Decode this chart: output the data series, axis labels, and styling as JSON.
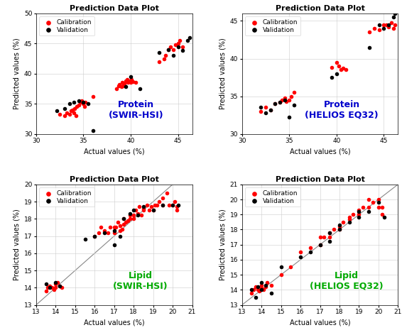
{
  "title": "Prediction Data Plot",
  "xlabel": "Actual values (%)",
  "ylabel": "Predicted values (%)",
  "protein_swir_cal_x": [
    32.5,
    33.0,
    33.2,
    33.5,
    33.7,
    33.8,
    34.0,
    34.1,
    34.2,
    34.3,
    34.5,
    34.7,
    34.8,
    35.0,
    35.1,
    35.2,
    36.0,
    38.5,
    38.7,
    38.8,
    39.0,
    39.1,
    39.2,
    39.3,
    39.5,
    39.6,
    39.7,
    39.8,
    40.0,
    40.1,
    40.2,
    40.5,
    43.0,
    43.5,
    43.7,
    44.0,
    44.2,
    44.5,
    44.7,
    45.0,
    45.2,
    45.5
  ],
  "protein_swir_cal_y": [
    33.2,
    33.0,
    33.5,
    33.2,
    33.8,
    34.0,
    33.5,
    34.2,
    33.0,
    34.5,
    34.8,
    35.2,
    35.5,
    35.0,
    34.5,
    35.3,
    36.2,
    37.5,
    38.0,
    38.2,
    37.8,
    38.5,
    38.0,
    38.3,
    38.8,
    39.0,
    38.5,
    38.8,
    38.5,
    39.0,
    38.7,
    38.5,
    42.0,
    42.5,
    43.0,
    44.0,
    44.5,
    44.0,
    44.8,
    45.0,
    45.5,
    44.5
  ],
  "protein_swir_val_x": [
    32.2,
    33.0,
    33.5,
    34.0,
    34.5,
    35.0,
    35.5,
    36.0,
    39.5,
    40.0,
    41.0,
    43.0,
    44.0,
    44.5,
    45.0,
    45.5,
    46.0,
    46.2
  ],
  "protein_swir_val_y": [
    33.8,
    34.2,
    35.0,
    35.2,
    35.5,
    35.3,
    35.0,
    30.5,
    37.8,
    39.5,
    37.5,
    43.5,
    44.0,
    43.0,
    44.5,
    43.8,
    45.5,
    46.0
  ],
  "protein_helios_cal_x": [
    32.0,
    32.5,
    33.0,
    33.5,
    34.0,
    34.2,
    34.5,
    34.7,
    35.0,
    35.2,
    35.5,
    39.5,
    40.0,
    40.2,
    40.5,
    40.7,
    41.0,
    43.5,
    44.0,
    44.5,
    45.0,
    45.3,
    45.5,
    45.8,
    46.0,
    46.2
  ],
  "protein_helios_cal_y": [
    33.0,
    33.5,
    33.2,
    34.0,
    34.2,
    34.5,
    34.8,
    34.3,
    34.5,
    35.0,
    35.5,
    38.8,
    39.5,
    39.0,
    38.5,
    38.7,
    38.5,
    43.5,
    44.0,
    43.8,
    44.5,
    44.5,
    44.2,
    44.8,
    44.0,
    44.5
  ],
  "protein_helios_val_x": [
    32.0,
    32.5,
    33.0,
    33.5,
    34.0,
    34.5,
    35.0,
    35.5,
    39.5,
    40.0,
    43.5,
    44.5,
    45.0,
    45.5,
    46.0,
    46.2
  ],
  "protein_helios_val_y": [
    33.5,
    32.8,
    33.2,
    34.0,
    34.2,
    34.5,
    32.2,
    33.8,
    37.5,
    38.0,
    41.5,
    44.5,
    44.0,
    44.5,
    45.5,
    46.0
  ],
  "lipid_swir_cal_x": [
    13.5,
    13.6,
    13.7,
    13.8,
    13.9,
    14.0,
    14.0,
    14.1,
    14.2,
    14.3,
    16.0,
    16.2,
    16.3,
    16.5,
    16.7,
    16.8,
    17.0,
    17.0,
    17.1,
    17.2,
    17.3,
    17.3,
    17.4,
    17.5,
    17.5,
    17.6,
    17.7,
    17.8,
    17.8,
    18.0,
    18.0,
    18.1,
    18.2,
    18.3,
    18.4,
    18.5,
    18.5,
    18.7,
    18.8,
    18.9,
    19.0,
    19.1,
    19.2,
    19.3,
    19.5,
    19.5,
    19.7,
    19.8,
    20.0,
    20.1,
    20.2,
    20.2
  ],
  "lipid_swir_cal_y": [
    13.8,
    14.0,
    14.1,
    14.0,
    13.9,
    14.2,
    14.0,
    14.3,
    14.1,
    14.0,
    17.0,
    17.2,
    17.5,
    17.3,
    17.2,
    17.5,
    17.2,
    17.5,
    17.5,
    17.8,
    17.3,
    17.6,
    17.4,
    18.0,
    17.7,
    17.8,
    17.9,
    18.0,
    18.2,
    18.0,
    18.2,
    18.5,
    18.3,
    18.7,
    18.2,
    18.5,
    18.6,
    18.8,
    18.5,
    18.7,
    18.5,
    18.8,
    18.8,
    19.0,
    18.8,
    19.2,
    19.5,
    18.8,
    18.8,
    19.0,
    18.5,
    18.7
  ],
  "lipid_swir_val_x": [
    13.5,
    13.7,
    14.0,
    14.2,
    15.5,
    16.0,
    16.5,
    17.0,
    17.0,
    17.3,
    17.5,
    17.8,
    18.0,
    18.2,
    18.5,
    19.0,
    19.5,
    20.0,
    20.3
  ],
  "lipid_swir_val_y": [
    14.2,
    14.0,
    14.3,
    14.1,
    16.8,
    17.0,
    17.2,
    16.5,
    17.3,
    17.0,
    18.0,
    18.3,
    18.5,
    18.2,
    18.7,
    18.5,
    18.8,
    18.8,
    18.8
  ],
  "lipid_helios_cal_x": [
    13.5,
    13.6,
    13.7,
    13.8,
    13.9,
    14.0,
    14.0,
    14.1,
    14.2,
    14.3,
    14.5,
    15.0,
    15.5,
    16.0,
    16.5,
    17.0,
    17.0,
    17.2,
    17.5,
    17.5,
    17.7,
    18.0,
    18.0,
    18.2,
    18.5,
    18.5,
    18.7,
    19.0,
    19.0,
    19.2,
    19.5,
    19.5,
    19.7,
    20.0,
    20.0,
    20.2,
    20.2
  ],
  "lipid_helios_cal_y": [
    13.8,
    14.0,
    14.2,
    14.0,
    13.9,
    14.3,
    14.1,
    14.0,
    14.2,
    14.5,
    14.3,
    15.0,
    15.5,
    16.5,
    16.8,
    17.0,
    17.5,
    17.5,
    17.5,
    17.8,
    18.0,
    18.0,
    18.2,
    18.5,
    18.7,
    18.8,
    19.0,
    19.0,
    19.3,
    19.5,
    19.5,
    20.0,
    19.8,
    19.5,
    20.0,
    19.5,
    19.0
  ],
  "lipid_helios_val_x": [
    13.5,
    13.7,
    13.8,
    14.0,
    14.0,
    14.2,
    14.5,
    15.0,
    16.0,
    16.5,
    17.0,
    17.5,
    17.5,
    18.0,
    18.0,
    18.5,
    19.0,
    19.0,
    19.5,
    20.0,
    20.3
  ],
  "lipid_helios_val_y": [
    14.0,
    13.5,
    14.2,
    14.5,
    14.0,
    14.3,
    13.8,
    15.5,
    16.2,
    16.5,
    17.0,
    17.2,
    17.8,
    18.0,
    18.3,
    18.5,
    18.8,
    19.2,
    19.2,
    19.8,
    18.8
  ],
  "cal_color": "#ff0000",
  "val_color": "#000000",
  "protein_label_color": "#0000cc",
  "lipid_label_color": "#00aa00",
  "p1_xlim": [
    30,
    46.5
  ],
  "p1_ylim": [
    30,
    50
  ],
  "p1_xticks": [
    30,
    35,
    40,
    45
  ],
  "p1_yticks": [
    30,
    35,
    40,
    45,
    50
  ],
  "p2_xlim": [
    30,
    46.5
  ],
  "p2_ylim": [
    30,
    46
  ],
  "p2_xticks": [
    30,
    35,
    40,
    45
  ],
  "p2_yticks": [
    30,
    35,
    40,
    45
  ],
  "l1_xlim": [
    13,
    21
  ],
  "l1_ylim": [
    13,
    20
  ],
  "l1_xticks": [
    13,
    14,
    15,
    16,
    17,
    18,
    19,
    20,
    21
  ],
  "l1_yticks": [
    13,
    14,
    15,
    16,
    17,
    18,
    19,
    20
  ],
  "l2_xlim": [
    13,
    21
  ],
  "l2_ylim": [
    13,
    21
  ],
  "l2_xticks": [
    13,
    14,
    15,
    16,
    17,
    18,
    19,
    20,
    21
  ],
  "l2_yticks": [
    13,
    14,
    15,
    16,
    17,
    18,
    19,
    20,
    21
  ],
  "marker_size": 4,
  "title_fontsize": 8,
  "label_fontsize": 7,
  "tick_fontsize": 6.5,
  "legend_fontsize": 6.5,
  "annot_fontsize": 9
}
